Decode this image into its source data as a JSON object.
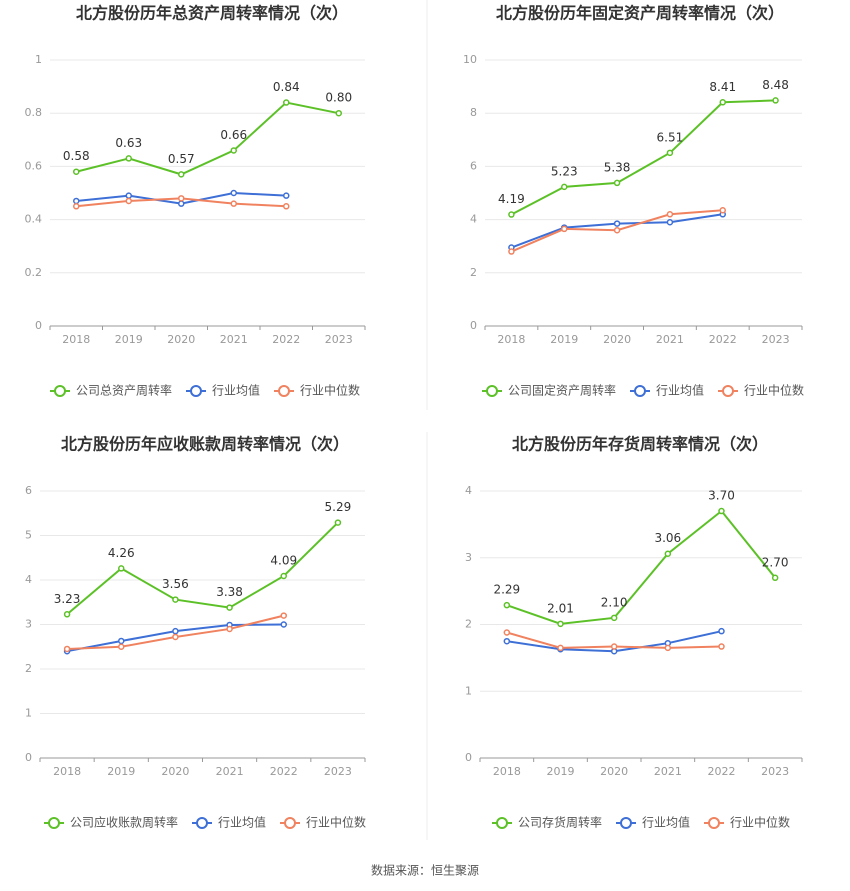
{
  "chart_data": [
    {
      "type": "line",
      "title": "北方股份历年总资产周转率情况（次）",
      "categories": [
        "2018",
        "2019",
        "2020",
        "2021",
        "2022",
        "2023"
      ],
      "ylim": [
        0,
        1
      ],
      "yticks": [
        0,
        0.2,
        0.4,
        0.6,
        0.8,
        1
      ],
      "grid": true,
      "series": [
        {
          "name": "公司总资产周转率",
          "color": "#5cc127",
          "values": [
            0.58,
            0.63,
            0.57,
            0.66,
            0.84,
            0.8
          ],
          "value_labels": [
            "0.58",
            "0.63",
            "0.57",
            "0.66",
            "0.84",
            "0.80"
          ]
        },
        {
          "name": "行业均值",
          "color": "#3d6fd6",
          "values": [
            0.47,
            0.49,
            0.46,
            0.5,
            0.49,
            null
          ]
        },
        {
          "name": "行业中位数",
          "color": "#f0825f",
          "values": [
            0.45,
            0.47,
            0.48,
            0.46,
            0.45,
            null
          ]
        }
      ]
    },
    {
      "type": "line",
      "title": "北方股份历年固定资产周转率情况（次）",
      "categories": [
        "2018",
        "2019",
        "2020",
        "2021",
        "2022",
        "2023"
      ],
      "ylim": [
        0,
        10
      ],
      "yticks": [
        0,
        2,
        4,
        6,
        8,
        10
      ],
      "grid": true,
      "series": [
        {
          "name": "公司固定资产周转率",
          "color": "#5cc127",
          "values": [
            4.19,
            5.23,
            5.38,
            6.51,
            8.41,
            8.48
          ],
          "value_labels": [
            "4.19",
            "5.23",
            "5.38",
            "6.51",
            "8.41",
            "8.48"
          ]
        },
        {
          "name": "行业均值",
          "color": "#3d6fd6",
          "values": [
            2.95,
            3.7,
            3.85,
            3.9,
            4.2,
            null
          ]
        },
        {
          "name": "行业中位数",
          "color": "#f0825f",
          "values": [
            2.8,
            3.65,
            3.6,
            4.2,
            4.35,
            null
          ]
        }
      ]
    },
    {
      "type": "line",
      "title": "北方股份历年应收账款周转率情况（次）",
      "categories": [
        "2018",
        "2019",
        "2020",
        "2021",
        "2022",
        "2023"
      ],
      "ylim": [
        0,
        6
      ],
      "yticks": [
        0,
        1,
        2,
        3,
        4,
        5,
        6
      ],
      "grid": true,
      "series": [
        {
          "name": "公司应收账款周转率",
          "color": "#5cc127",
          "values": [
            3.23,
            4.26,
            3.56,
            3.38,
            4.09,
            5.29
          ],
          "value_labels": [
            "3.23",
            "4.26",
            "3.56",
            "3.38",
            "4.09",
            "5.29"
          ]
        },
        {
          "name": "行业均值",
          "color": "#3d6fd6",
          "values": [
            2.4,
            2.63,
            2.85,
            2.99,
            3.0,
            null
          ]
        },
        {
          "name": "行业中位数",
          "color": "#f0825f",
          "values": [
            2.45,
            2.5,
            2.72,
            2.9,
            3.2,
            null
          ]
        }
      ]
    },
    {
      "type": "line",
      "title": "北方股份历年存货周转率情况（次）",
      "categories": [
        "2018",
        "2019",
        "2020",
        "2021",
        "2022",
        "2023"
      ],
      "ylim": [
        0,
        4
      ],
      "yticks": [
        0,
        1,
        2,
        3,
        4
      ],
      "grid": true,
      "series": [
        {
          "name": "公司存货周转率",
          "color": "#5cc127",
          "values": [
            2.29,
            2.01,
            2.1,
            3.06,
            3.7,
            2.7
          ],
          "value_labels": [
            "2.29",
            "2.01",
            "2.10",
            "3.06",
            "3.70",
            "2.70"
          ]
        },
        {
          "name": "行业均值",
          "color": "#3d6fd6",
          "values": [
            1.75,
            1.63,
            1.6,
            1.72,
            1.9,
            null
          ]
        },
        {
          "name": "行业中位数",
          "color": "#f0825f",
          "values": [
            1.88,
            1.65,
            1.67,
            1.65,
            1.67,
            null
          ]
        }
      ]
    }
  ],
  "source": "数据来源：恒生聚源"
}
